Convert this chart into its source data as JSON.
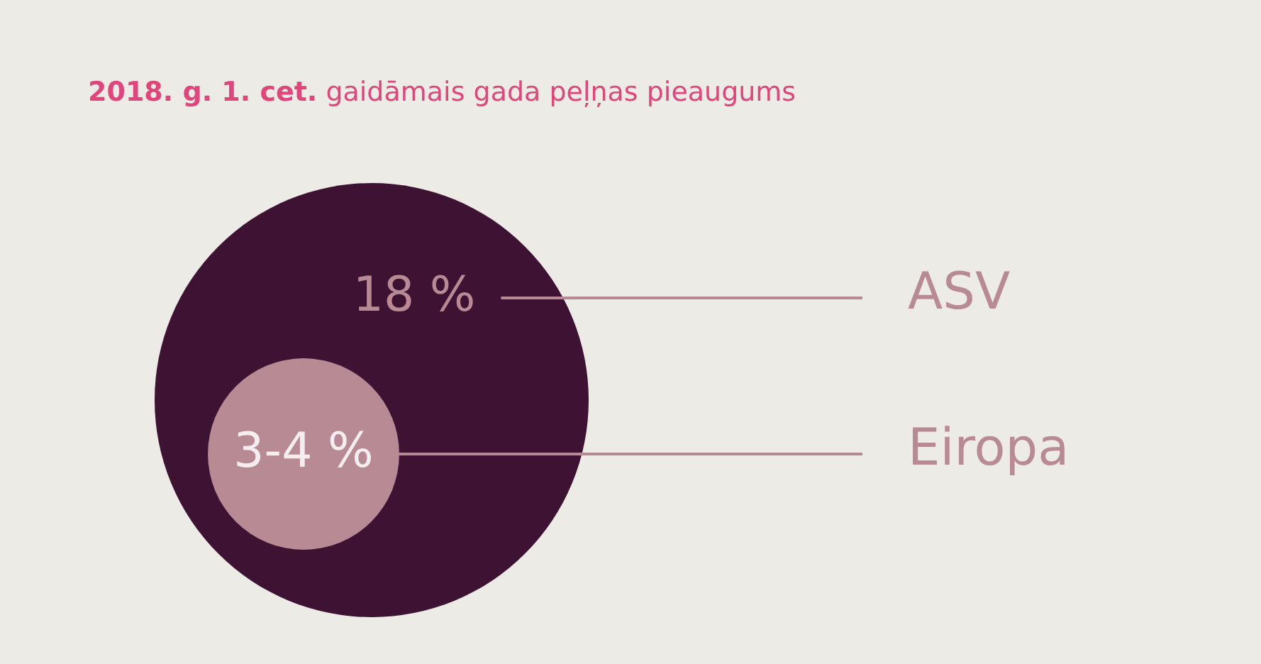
{
  "chart_data": {
    "type": "other",
    "title": "2018. g. 1. cet.",
    "subtitle": "gaidāmais gada peļņas pieaugums",
    "categories": [
      "ASV",
      "Eiropa"
    ],
    "values": [
      18,
      3.5
    ],
    "value_labels": [
      "18 %",
      "3-4 %"
    ],
    "colors": [
      "#3d1232",
      "#b88a93"
    ],
    "legend": false
  }
}
